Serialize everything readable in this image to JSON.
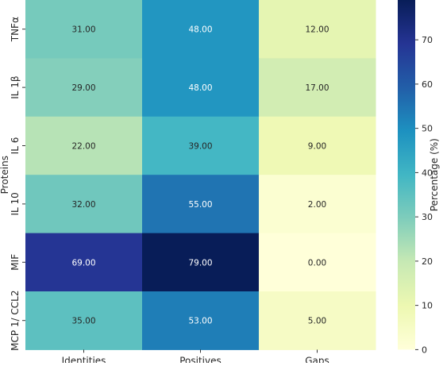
{
  "chart_data": {
    "type": "heatmap",
    "title": "",
    "xlabel": "",
    "ylabel": "Proteins",
    "x_categories": [
      "Identities",
      "Positives",
      "Gaps"
    ],
    "y_categories": [
      "TNFα",
      "IL 1β",
      "IL 6",
      "IL 10",
      "MIF",
      "MCP 1/ CCL2"
    ],
    "values": [
      [
        31,
        48,
        12
      ],
      [
        29,
        48,
        17
      ],
      [
        22,
        39,
        9
      ],
      [
        32,
        55,
        2
      ],
      [
        69,
        79,
        0
      ],
      [
        35,
        53,
        5
      ]
    ],
    "value_format": "2 decimals",
    "colormap": "YlGnBu",
    "colorbar": {
      "label": "Percentage (%)",
      "range": [
        0,
        79
      ],
      "ticks": [
        "0",
        "10",
        "20",
        "30",
        "40",
        "50",
        "60",
        "70"
      ],
      "tick_values": [
        0,
        10,
        20,
        30,
        40,
        50,
        60,
        70
      ]
    }
  }
}
